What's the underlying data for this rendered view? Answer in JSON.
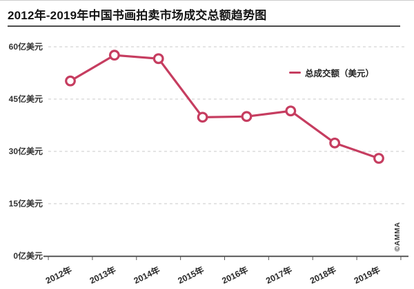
{
  "title": "2012年-2019年中国书画拍卖市场成交总额趋势图",
  "legend": {
    "label": "总成交额（美元）"
  },
  "watermark": "©AMMA",
  "colors": {
    "line": "#C63D60",
    "marker_fill": "#FFFFFF",
    "grid": "#C9C9C9",
    "axis": "#3F3F3F",
    "tick": "#555555",
    "label_text": "#333333",
    "title_text": "#141414",
    "title_rule": "#4B4B4B"
  },
  "chart_data": {
    "type": "line",
    "title": "2012年-2019年中国书画拍卖市场成交总额趋势图",
    "categories": [
      "2012年",
      "2013年",
      "2014年",
      "2015年",
      "2016年",
      "2017年",
      "2018年",
      "2019年"
    ],
    "series": [
      {
        "name": "总成交额（美元）",
        "values": [
          50.2,
          57.6,
          56.6,
          39.8,
          40.0,
          41.6,
          32.4,
          28.0
        ]
      }
    ],
    "unit": "亿美元",
    "y_tick_values": [
      0,
      15,
      30,
      45,
      60
    ],
    "y_tick_labels": [
      "0亿美元",
      "15亿美元",
      "30亿美元",
      "45亿美元",
      "60亿美元"
    ],
    "ylim": [
      0,
      60
    ],
    "grid": "horizontal-dashed",
    "legend_position": "upper-right-inside",
    "marker": "open-circle",
    "x_label_rotation_deg": -26
  }
}
